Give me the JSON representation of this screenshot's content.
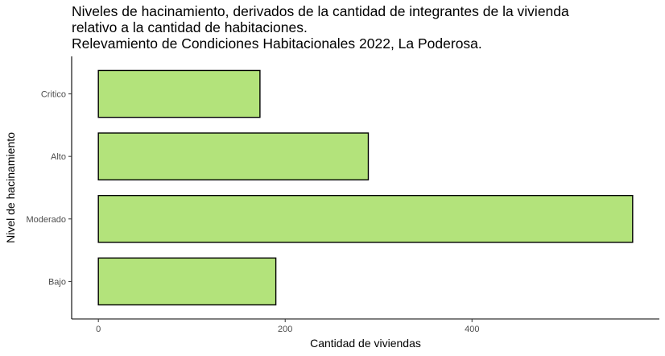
{
  "chart_data": {
    "type": "bar",
    "orientation": "horizontal",
    "title_lines": [
      "Niveles de hacinamiento, derivados de la cantidad de integrantes de la vivienda",
      "relativo a la cantidad de habitaciones.",
      "Relevamiento de Condiciones Habitacionales 2022, La Poderosa."
    ],
    "categories": [
      "Bajo",
      "Moderado",
      "Alto",
      "Critico"
    ],
    "values": [
      190,
      572,
      289,
      173
    ],
    "xlabel": "Cantidad de viviendas",
    "ylabel": "Nivel de hacinamiento",
    "x_ticks": [
      0,
      200,
      400
    ],
    "xlim": [
      -28.6,
      600.6
    ],
    "bar_fill": "#b3e37b",
    "bar_stroke": "#000000",
    "grid": false,
    "legend": "none"
  }
}
